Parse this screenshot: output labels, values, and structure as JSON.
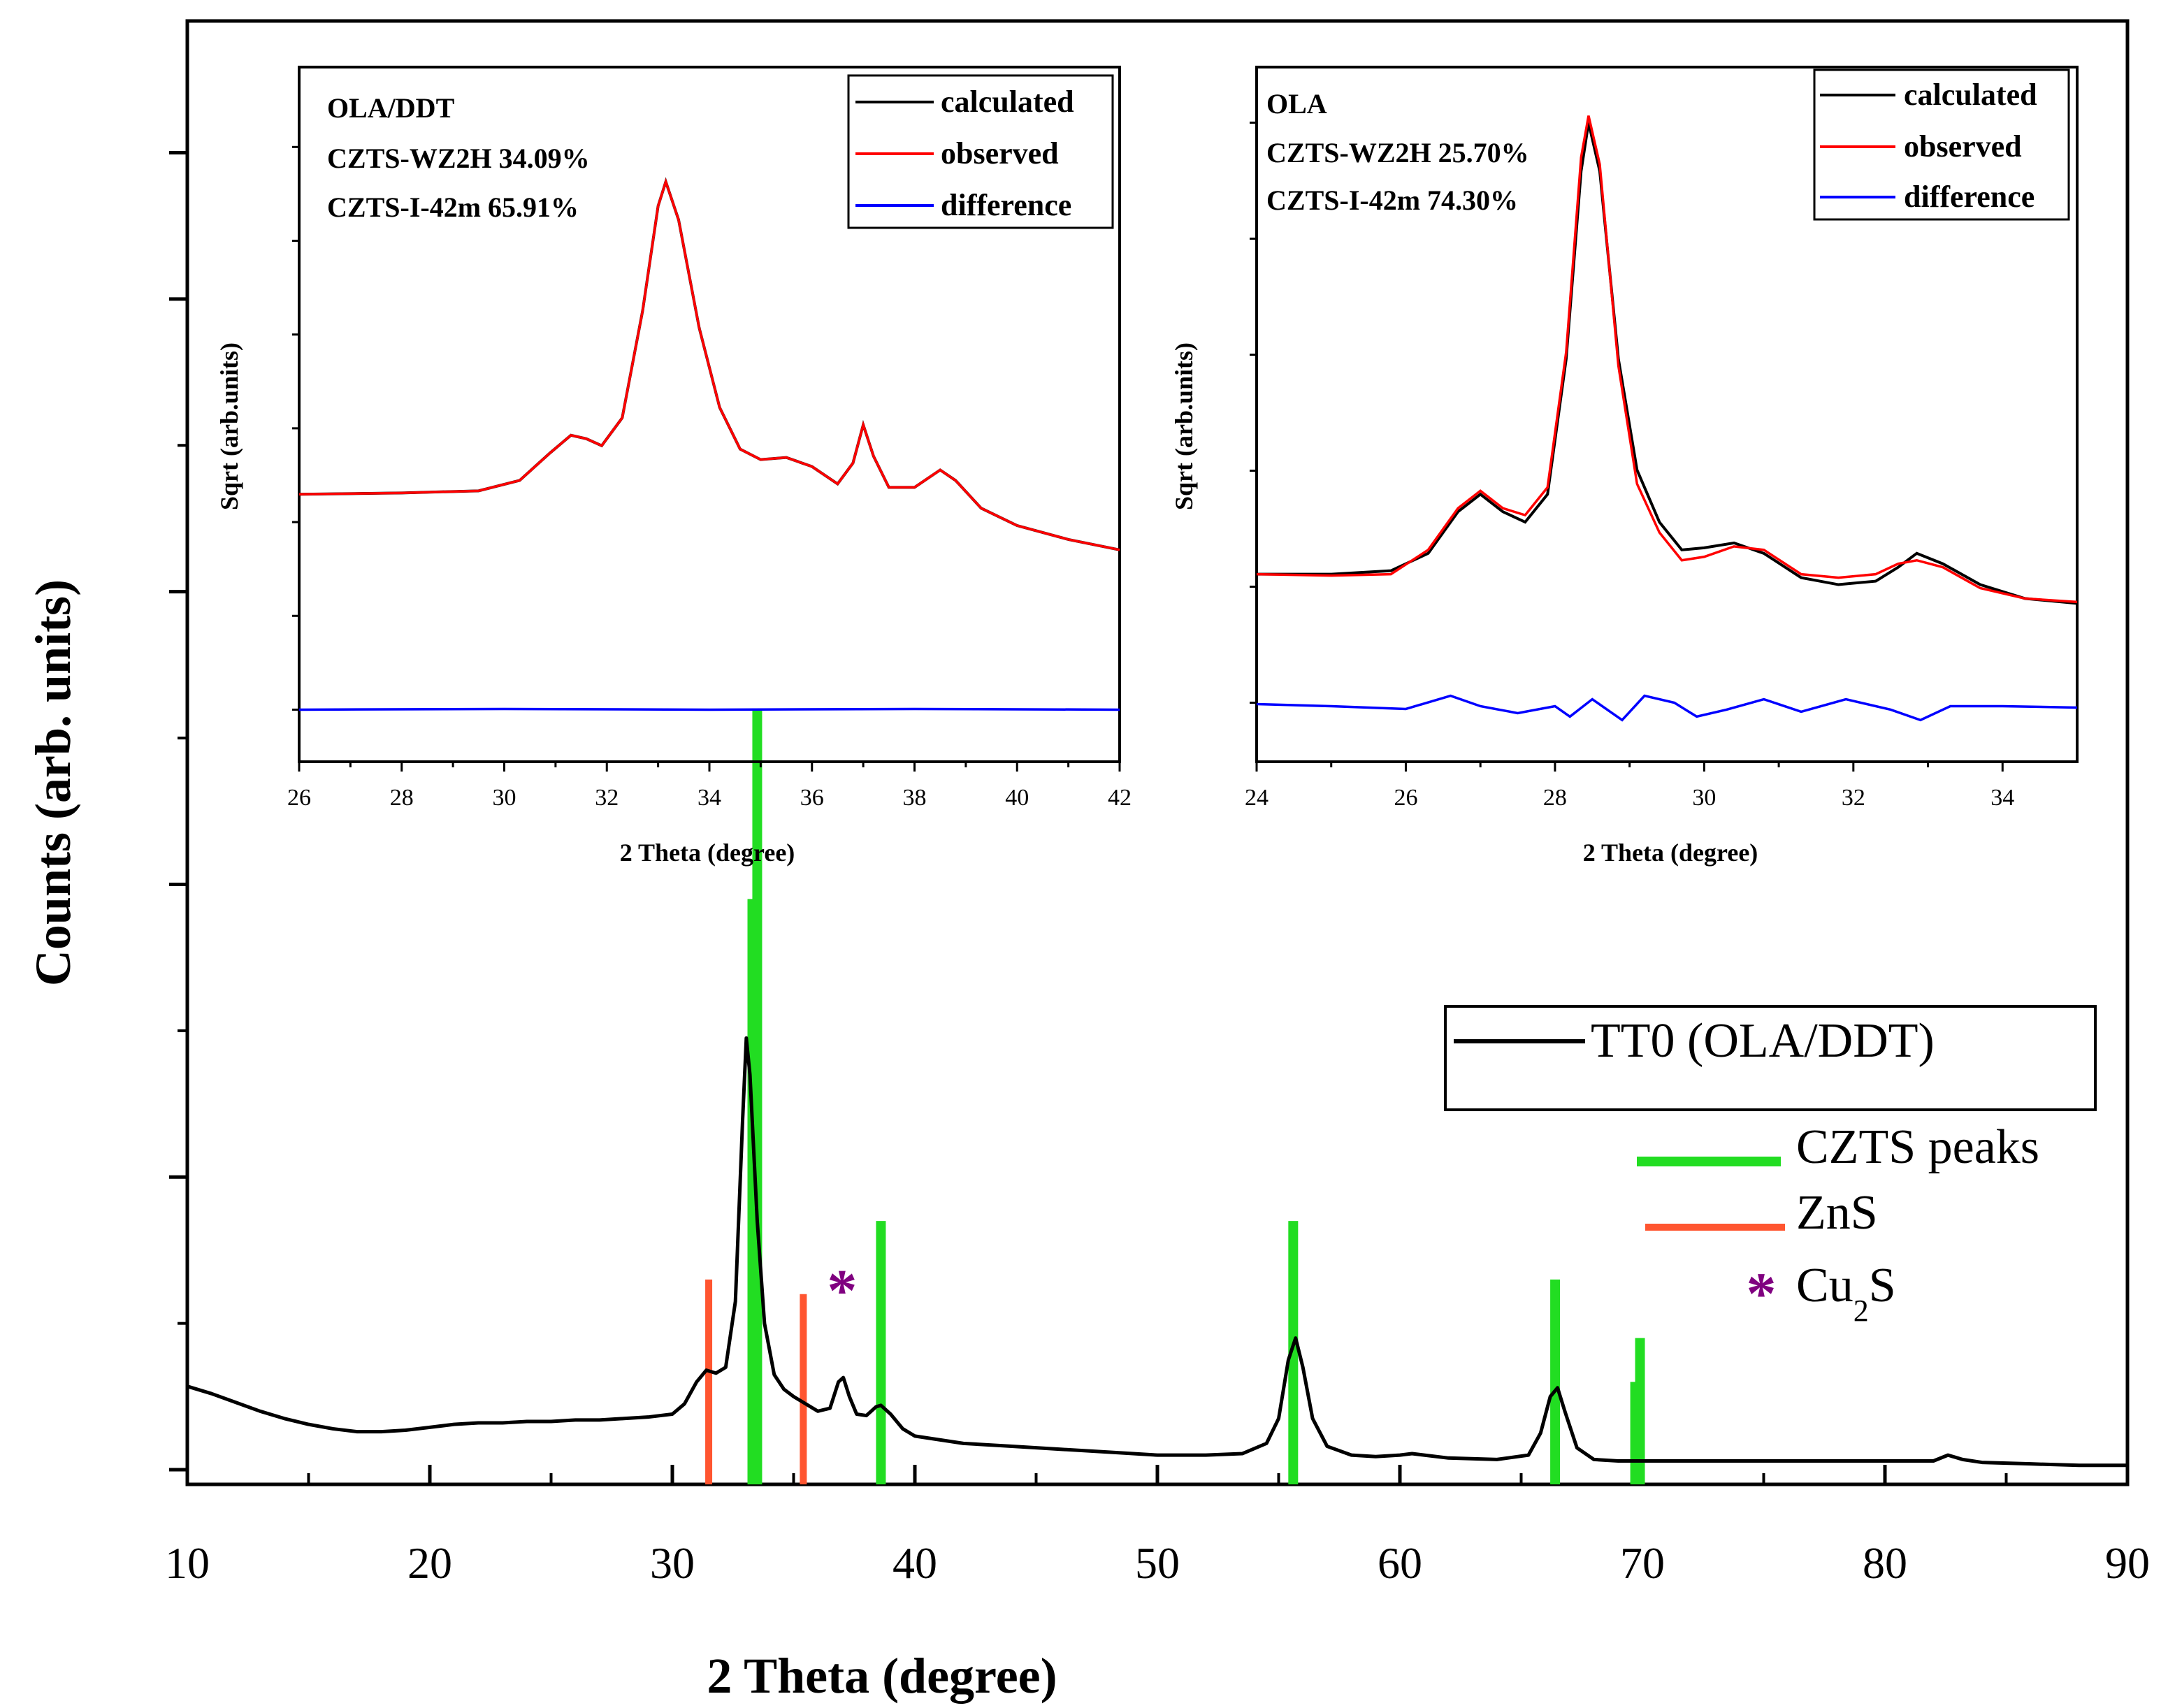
{
  "chart_data": [
    {
      "id": "main",
      "type": "line",
      "xlabel": "2 Theta (degree)",
      "ylabel": "Counts (arb. units)",
      "xlim": [
        10,
        90
      ],
      "ylim": [
        0,
        100
      ],
      "xticks": [
        10,
        20,
        30,
        40,
        50,
        60,
        70,
        80,
        90
      ],
      "yticks_unlabeled": [
        1,
        21,
        41,
        61,
        81,
        91
      ],
      "legend": {
        "position": "right",
        "series_label": "TT0 (OLA/DDT)",
        "czts_label": "CZTS peaks",
        "zns_label": "ZnS",
        "cu2s_prefix": "Cu",
        "cu2s_sub": "2",
        "cu2s_suffix": "S",
        "cu2s_marker": "*"
      },
      "series": [
        {
          "name": "TT0 (OLA/DDT)",
          "color": "#000000",
          "points": [
            [
              10,
              6.7
            ],
            [
              11,
              6.2
            ],
            [
              12,
              5.6
            ],
            [
              13,
              5.0
            ],
            [
              14,
              4.5
            ],
            [
              15,
              4.1
            ],
            [
              16,
              3.8
            ],
            [
              17,
              3.6
            ],
            [
              18,
              3.6
            ],
            [
              19,
              3.7
            ],
            [
              20,
              3.9
            ],
            [
              21,
              4.1
            ],
            [
              22,
              4.2
            ],
            [
              23,
              4.2
            ],
            [
              24,
              4.3
            ],
            [
              25,
              4.3
            ],
            [
              26,
              4.4
            ],
            [
              27,
              4.4
            ],
            [
              28,
              4.5
            ],
            [
              29,
              4.6
            ],
            [
              30,
              4.8
            ],
            [
              30.5,
              5.5
            ],
            [
              31,
              7.0
            ],
            [
              31.4,
              7.8
            ],
            [
              31.8,
              7.6
            ],
            [
              32.2,
              8.0
            ],
            [
              32.6,
              12.5
            ],
            [
              32.9,
              25.0
            ],
            [
              33.05,
              30.5
            ],
            [
              33.2,
              28.0
            ],
            [
              33.5,
              18.0
            ],
            [
              33.8,
              11.0
            ],
            [
              34.2,
              7.5
            ],
            [
              34.6,
              6.5
            ],
            [
              35.0,
              6.0
            ],
            [
              35.4,
              5.6
            ],
            [
              36.0,
              5.0
            ],
            [
              36.5,
              5.2
            ],
            [
              36.85,
              7.0
            ],
            [
              37.05,
              7.3
            ],
            [
              37.3,
              6.0
            ],
            [
              37.6,
              4.8
            ],
            [
              38.0,
              4.7
            ],
            [
              38.4,
              5.3
            ],
            [
              38.6,
              5.4
            ],
            [
              39.0,
              4.8
            ],
            [
              39.5,
              3.8
            ],
            [
              40,
              3.3
            ],
            [
              42,
              2.8
            ],
            [
              44,
              2.6
            ],
            [
              46,
              2.4
            ],
            [
              48,
              2.2
            ],
            [
              50,
              2.0
            ],
            [
              52,
              2.0
            ],
            [
              53.5,
              2.1
            ],
            [
              54.5,
              2.8
            ],
            [
              55.0,
              4.5
            ],
            [
              55.4,
              8.5
            ],
            [
              55.7,
              10.0
            ],
            [
              56.0,
              8.0
            ],
            [
              56.4,
              4.5
            ],
            [
              57.0,
              2.6
            ],
            [
              58,
              2.0
            ],
            [
              59,
              1.9
            ],
            [
              60,
              2.0
            ],
            [
              60.5,
              2.1
            ],
            [
              61,
              2.0
            ],
            [
              62,
              1.8
            ],
            [
              64,
              1.7
            ],
            [
              65.3,
              2.0
            ],
            [
              65.8,
              3.5
            ],
            [
              66.2,
              6.0
            ],
            [
              66.5,
              6.6
            ],
            [
              66.8,
              5.0
            ],
            [
              67.3,
              2.5
            ],
            [
              68,
              1.7
            ],
            [
              69,
              1.6
            ],
            [
              70,
              1.6
            ],
            [
              72,
              1.6
            ],
            [
              75,
              1.6
            ],
            [
              78,
              1.6
            ],
            [
              80,
              1.6
            ],
            [
              82,
              1.6
            ],
            [
              82.6,
              2.0
            ],
            [
              83.2,
              1.7
            ],
            [
              84,
              1.5
            ],
            [
              86,
              1.4
            ],
            [
              88,
              1.3
            ],
            [
              90,
              1.3
            ]
          ]
        }
      ],
      "reference_lines": {
        "czts": {
          "color": "#22dd22",
          "positions": [
            33.3,
            33.5,
            38.6,
            55.6,
            66.4,
            69.7,
            69.9
          ],
          "heights": [
            40,
            53,
            18,
            18,
            14,
            7,
            10
          ]
        },
        "zns": {
          "color": "#ff5530",
          "positions": [
            31.5,
            35.4
          ],
          "heights": [
            14,
            13
          ]
        },
        "cu2s": {
          "color": "#800080",
          "positions": [
            37.0
          ],
          "marker": "*",
          "y": 13.5
        }
      }
    },
    {
      "id": "inset_ola_ddt",
      "type": "line",
      "xlabel": "2 Theta (degree)",
      "ylabel": "Sqrt (arb.units)",
      "xlim": [
        26,
        42
      ],
      "ylim": [
        0,
        100
      ],
      "xticks": [
        26,
        28,
        30,
        32,
        34,
        36,
        38,
        40,
        42
      ],
      "annotation_lines": [
        "OLA/DDT",
        "CZTS-WZ2H 34.09%",
        "CZTS-I-42m 65.91%"
      ],
      "legend": {
        "position": "top-right",
        "entries": [
          "calculated",
          "observed",
          "difference"
        ],
        "colors": [
          "#000000",
          "#ff0000",
          "#0000ff"
        ]
      },
      "series": [
        {
          "name": "calculated",
          "color": "#000000",
          "points": [
            [
              26,
              38.5
            ],
            [
              28,
              38.7
            ],
            [
              29.5,
              39.0
            ],
            [
              30.3,
              40.5
            ],
            [
              30.9,
              44.5
            ],
            [
              31.3,
              47.0
            ],
            [
              31.6,
              46.5
            ],
            [
              31.9,
              45.5
            ],
            [
              32.3,
              49.5
            ],
            [
              32.7,
              65.0
            ],
            [
              33.0,
              80.0
            ],
            [
              33.15,
              83.5
            ],
            [
              33.4,
              78.0
            ],
            [
              33.8,
              62.5
            ],
            [
              34.2,
              51.0
            ],
            [
              34.6,
              45.0
            ],
            [
              35.0,
              43.5
            ],
            [
              35.5,
              43.8
            ],
            [
              36.0,
              42.5
            ],
            [
              36.5,
              40.0
            ],
            [
              36.8,
              43.0
            ],
            [
              37.0,
              48.5
            ],
            [
              37.2,
              44.0
            ],
            [
              37.5,
              39.5
            ],
            [
              38.0,
              39.5
            ],
            [
              38.5,
              42.0
            ],
            [
              38.8,
              40.5
            ],
            [
              39.3,
              36.5
            ],
            [
              40,
              34.0
            ],
            [
              41,
              32.0
            ],
            [
              42,
              30.5
            ]
          ]
        },
        {
          "name": "observed",
          "color": "#ff0000",
          "points": [
            [
              26,
              38.5
            ],
            [
              28,
              38.7
            ],
            [
              29.5,
              39.0
            ],
            [
              30.3,
              40.5
            ],
            [
              30.9,
              44.5
            ],
            [
              31.3,
              47.0
            ],
            [
              31.6,
              46.5
            ],
            [
              31.9,
              45.5
            ],
            [
              32.3,
              49.5
            ],
            [
              32.7,
              65.0
            ],
            [
              33.0,
              80.0
            ],
            [
              33.15,
              83.5
            ],
            [
              33.4,
              78.0
            ],
            [
              33.8,
              62.5
            ],
            [
              34.2,
              51.0
            ],
            [
              34.6,
              45.0
            ],
            [
              35.0,
              43.5
            ],
            [
              35.5,
              43.8
            ],
            [
              36.0,
              42.5
            ],
            [
              36.5,
              40.0
            ],
            [
              36.8,
              43.0
            ],
            [
              37.0,
              48.5
            ],
            [
              37.2,
              44.0
            ],
            [
              37.5,
              39.5
            ],
            [
              38.0,
              39.5
            ],
            [
              38.5,
              42.0
            ],
            [
              38.8,
              40.5
            ],
            [
              39.3,
              36.5
            ],
            [
              40,
              34.0
            ],
            [
              41,
              32.0
            ],
            [
              42,
              30.5
            ]
          ]
        },
        {
          "name": "difference",
          "color": "#0000ff",
          "points": [
            [
              26,
              7.5
            ],
            [
              30,
              7.6
            ],
            [
              34,
              7.5
            ],
            [
              38,
              7.6
            ],
            [
              42,
              7.5
            ]
          ]
        }
      ]
    },
    {
      "id": "inset_ola",
      "type": "line",
      "xlabel": "2 Theta (degree)",
      "ylabel": "Sqrt (arb.units)",
      "xlim": [
        24,
        35
      ],
      "ylim": [
        0,
        100
      ],
      "xticks": [
        24,
        26,
        28,
        30,
        32,
        34
      ],
      "annotation_lines": [
        "OLA",
        "CZTS-WZ2H 25.70%",
        "CZTS-I-42m 74.30%"
      ],
      "legend": {
        "position": "top-right",
        "entries": [
          "calculated",
          "observed",
          "difference"
        ],
        "colors": [
          "#000000",
          "#ff0000",
          "#0000ff"
        ]
      },
      "series": [
        {
          "name": "calculated",
          "color": "#000000",
          "points": [
            [
              24,
              27.0
            ],
            [
              25,
              27.0
            ],
            [
              25.8,
              27.5
            ],
            [
              26.3,
              30.0
            ],
            [
              26.7,
              36.0
            ],
            [
              27.0,
              38.5
            ],
            [
              27.3,
              36.0
            ],
            [
              27.6,
              34.5
            ],
            [
              27.9,
              38.5
            ],
            [
              28.15,
              58.0
            ],
            [
              28.35,
              85.0
            ],
            [
              28.45,
              92.0
            ],
            [
              28.6,
              85.0
            ],
            [
              28.85,
              58.0
            ],
            [
              29.1,
              42.0
            ],
            [
              29.4,
              34.5
            ],
            [
              29.7,
              30.5
            ],
            [
              30.0,
              30.8
            ],
            [
              30.4,
              31.5
            ],
            [
              30.8,
              30.0
            ],
            [
              31.3,
              26.5
            ],
            [
              31.8,
              25.5
            ],
            [
              32.3,
              26.0
            ],
            [
              32.6,
              28.0
            ],
            [
              32.85,
              30.0
            ],
            [
              33.2,
              28.5
            ],
            [
              33.7,
              25.5
            ],
            [
              34.3,
              23.5
            ],
            [
              35,
              22.8
            ]
          ]
        },
        {
          "name": "observed",
          "color": "#ff0000",
          "points": [
            [
              24,
              27.0
            ],
            [
              25,
              26.8
            ],
            [
              25.8,
              27.0
            ],
            [
              26.3,
              30.5
            ],
            [
              26.7,
              36.5
            ],
            [
              27.0,
              39.0
            ],
            [
              27.3,
              36.5
            ],
            [
              27.6,
              35.5
            ],
            [
              27.9,
              39.5
            ],
            [
              28.15,
              59.0
            ],
            [
              28.35,
              87.0
            ],
            [
              28.45,
              93.0
            ],
            [
              28.6,
              86.0
            ],
            [
              28.85,
              57.0
            ],
            [
              29.1,
              40.0
            ],
            [
              29.4,
              33.0
            ],
            [
              29.7,
              29.0
            ],
            [
              30.0,
              29.5
            ],
            [
              30.4,
              31.0
            ],
            [
              30.8,
              30.5
            ],
            [
              31.3,
              27.0
            ],
            [
              31.8,
              26.5
            ],
            [
              32.3,
              27.0
            ],
            [
              32.6,
              28.5
            ],
            [
              32.85,
              29.0
            ],
            [
              33.2,
              28.0
            ],
            [
              33.7,
              25.0
            ],
            [
              34.3,
              23.5
            ],
            [
              35,
              23.0
            ]
          ]
        },
        {
          "name": "difference",
          "color": "#0000ff",
          "points": [
            [
              24,
              8.3
            ],
            [
              25,
              8.0
            ],
            [
              26,
              7.6
            ],
            [
              26.6,
              9.5
            ],
            [
              27.0,
              8.0
            ],
            [
              27.5,
              7.0
            ],
            [
              28.0,
              8.0
            ],
            [
              28.2,
              6.5
            ],
            [
              28.5,
              9.0
            ],
            [
              28.9,
              6.0
            ],
            [
              29.2,
              9.5
            ],
            [
              29.6,
              8.5
            ],
            [
              29.9,
              6.5
            ],
            [
              30.3,
              7.5
            ],
            [
              30.8,
              9.0
            ],
            [
              31.3,
              7.2
            ],
            [
              31.9,
              9.0
            ],
            [
              32.5,
              7.5
            ],
            [
              32.9,
              6.0
            ],
            [
              33.3,
              8.0
            ],
            [
              34,
              8.0
            ],
            [
              35,
              7.8
            ]
          ]
        }
      ]
    }
  ]
}
